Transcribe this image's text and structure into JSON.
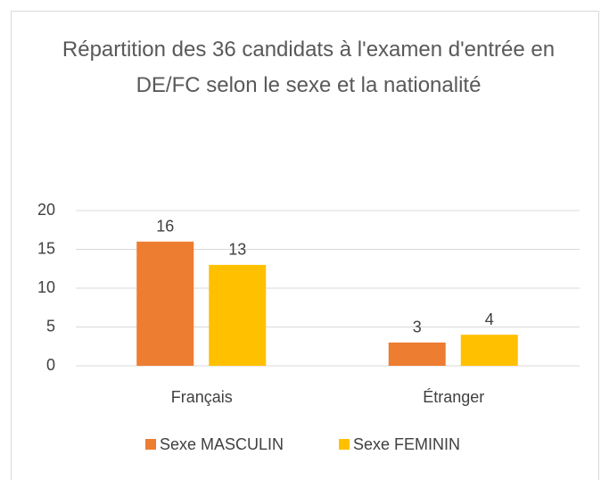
{
  "chart_data": {
    "type": "bar",
    "title": "Répartition des 36 candidats à l'examen d'entrée en DE/FC selon le sexe et la nationalité",
    "categories": [
      "Français",
      "Étranger"
    ],
    "series": [
      {
        "name": "Sexe MASCULIN",
        "color": "#ED7D31",
        "values": [
          16,
          3
        ]
      },
      {
        "name": "Sexe FEMININ",
        "color": "#FFC000",
        "values": [
          13,
          4
        ]
      }
    ],
    "ylim": [
      0,
      20
    ],
    "yticks": [
      0,
      5,
      10,
      15,
      20
    ],
    "grid": true,
    "legend": "bottom"
  }
}
